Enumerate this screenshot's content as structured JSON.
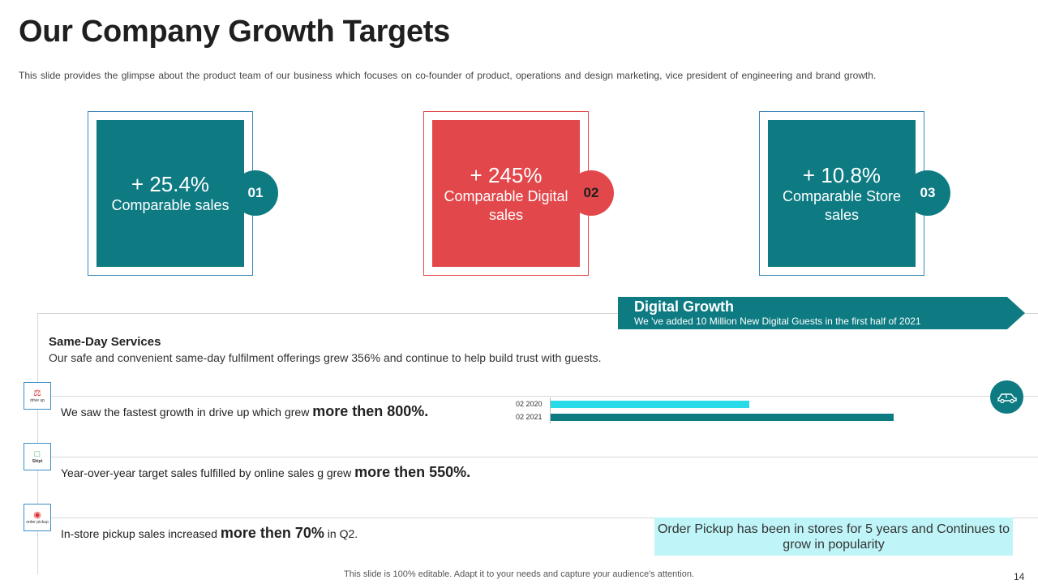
{
  "header": {
    "title": "Our Company Growth Targets",
    "subtitle": "This slide provides the glimpse about the product team of our business which focuses on co-founder of product, operations and design marketing, vice president of engineering and brand growth."
  },
  "cards": [
    {
      "value": "+ 25.4%",
      "label": "Comparable sales",
      "badge": "01",
      "color": "#0e7b83"
    },
    {
      "value": "+ 245%",
      "label": "Comparable Digital sales",
      "badge": "02",
      "color": "#e2484b"
    },
    {
      "value": "+ 10.8%",
      "label": "Comparable Store sales",
      "badge": "03",
      "color": "#0e7b83"
    }
  ],
  "banner": {
    "title": "Digital Growth",
    "text": "We 've added 10 Million New Digital Guests in the first half of 2021"
  },
  "same_day": {
    "title": "Same-Day Services",
    "text": "Our safe and convenient same-day fulfilment offerings grew 356% and continue to help build trust with guests."
  },
  "rows": [
    {
      "icon": "drive-up-icon",
      "icon_caption": "drive up",
      "text": "We saw the fastest growth in drive up which grew ",
      "highlight": "more then 800%.",
      "tail": ""
    },
    {
      "icon": "shipt-icon",
      "icon_caption": "Shipt",
      "text": "Year-over-year target sales fulfilled by online sales g grew ",
      "highlight": "more then 550%.",
      "tail": ""
    },
    {
      "icon": "order-pickup-icon",
      "icon_caption": "order pickup",
      "text": "In-store pickup sales increased ",
      "highlight": "more then 70%",
      "tail": " in Q2."
    }
  ],
  "chart_data": {
    "type": "bar",
    "orientation": "horizontal",
    "categories": [
      "02 2020",
      "02 2021"
    ],
    "values": [
      0.58,
      1.0
    ],
    "colors": [
      "#29dbe8",
      "#0e7b83"
    ]
  },
  "pickup_note": "Order Pickup has been in stores for 5 years and Continues to grow in popularity",
  "footer": {
    "text": "This slide is 100% editable. Adapt it to your needs and capture your audience's attention.",
    "page": "14"
  }
}
